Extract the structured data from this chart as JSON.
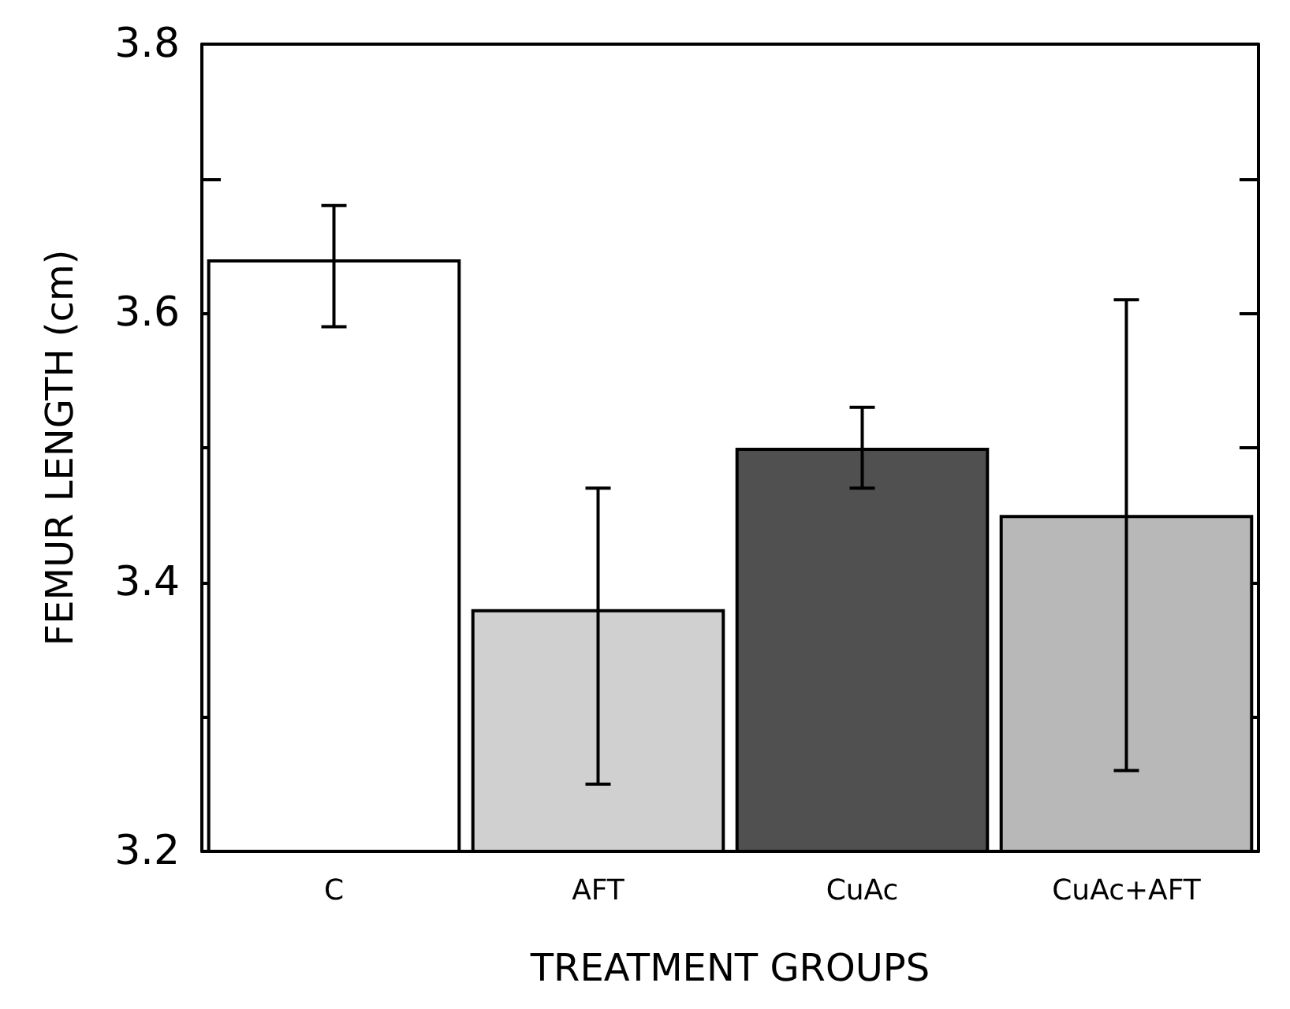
{
  "chart_data": {
    "type": "bar",
    "xlabel": "TREATMENT GROUPS",
    "ylabel": "FEMUR LENGTH (cm)",
    "categories": [
      "C",
      "AFT",
      "CuAc",
      "CuAc+AFT"
    ],
    "values": [
      3.64,
      3.38,
      3.5,
      3.45
    ],
    "colors": [
      "#ffffff",
      "#d0d0d0",
      "#505050",
      "#b8b8b8"
    ],
    "errors": [
      [
        3.59,
        3.68
      ],
      [
        3.25,
        3.47
      ],
      [
        3.47,
        3.53
      ],
      [
        3.26,
        3.61
      ]
    ],
    "ylim": [
      3.2,
      3.8
    ],
    "yticks": [
      3.2,
      {
        "value": 3.3,
        "label": null
      },
      3.4,
      {
        "value": 3.5,
        "label": null
      },
      3.6,
      {
        "value": 3.7,
        "label": null
      },
      3.8
    ],
    "grid": false
  }
}
